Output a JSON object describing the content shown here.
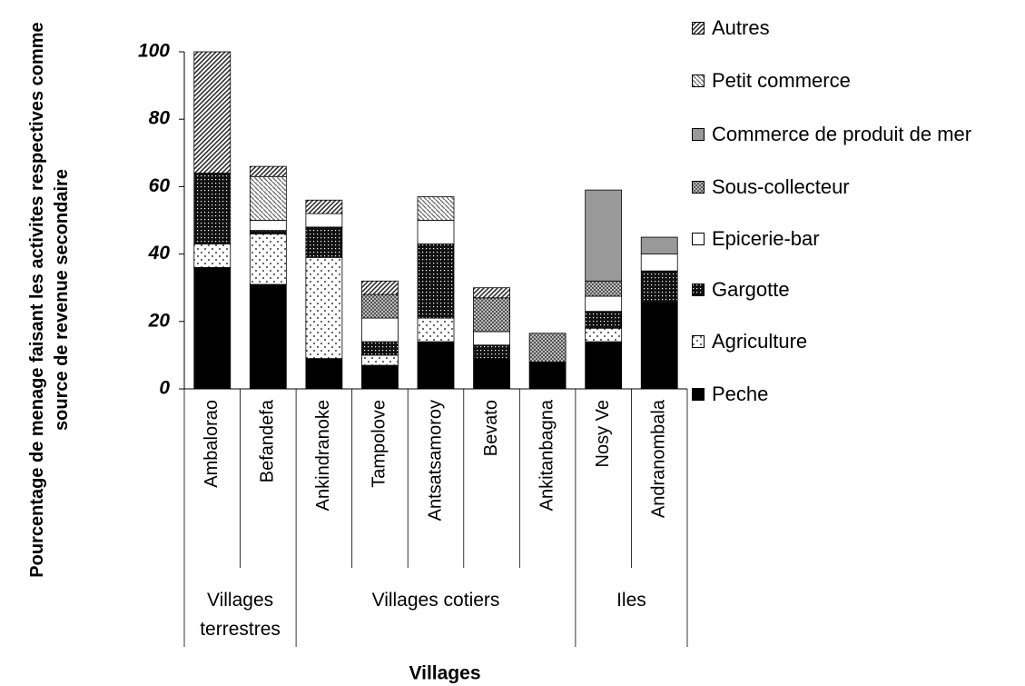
{
  "chart_data": {
    "type": "stacked_bar",
    "ylabel": "Pourcentage de menage faisant les activites respectives comme source de revenue secondaire",
    "xlabel": "Villages",
    "categories": [
      "Ambalorao",
      "Befandefa",
      "Ankindranoke",
      "Tampolove",
      "Antsatsamoroy",
      "Bevato",
      "Ankitanbagna",
      "Nosy Ve",
      "Andranombala"
    ],
    "groups": [
      {
        "label": "Villages terrestres",
        "span": 2
      },
      {
        "label": "Villages cotiers",
        "span": 5
      },
      {
        "label": "Iles",
        "span": 2
      }
    ],
    "series": [
      {
        "name": "Peche",
        "color": "#000000",
        "pattern": "solid",
        "values": [
          36,
          31,
          9,
          7,
          14,
          9,
          8,
          14,
          25.5
        ]
      },
      {
        "name": "Agriculture",
        "color": "#ffffff",
        "pattern": "dots",
        "values": [
          7,
          15,
          30,
          3,
          7,
          0,
          0,
          4,
          0
        ]
      },
      {
        "name": "Gargotte",
        "color": "#222222",
        "pattern": "dense",
        "values": [
          21,
          1,
          9,
          4,
          22,
          4,
          0,
          5,
          9.5
        ]
      },
      {
        "name": "Epicerie-bar",
        "color": "#ffffff",
        "pattern": "solid",
        "values": [
          0,
          3,
          4,
          7,
          7,
          4,
          0,
          4.5,
          5
        ]
      },
      {
        "name": "Sous-collecteur",
        "color": "#888888",
        "pattern": "checker",
        "values": [
          0,
          0,
          0,
          7,
          0,
          10,
          8.5,
          4.5,
          0
        ]
      },
      {
        "name": "Commerce de produit de mer",
        "color": "#999999",
        "pattern": "solid",
        "values": [
          0,
          0,
          0,
          0,
          0,
          0,
          0,
          27,
          5
        ]
      },
      {
        "name": "Petit commerce",
        "color": "#ffffff",
        "pattern": "back",
        "values": [
          0,
          13,
          0,
          0,
          7,
          0,
          0,
          0,
          0
        ]
      },
      {
        "name": "Autres",
        "color": "#ffffff",
        "pattern": "fwd",
        "values": [
          36,
          3,
          4,
          4,
          0,
          3,
          0,
          0,
          0
        ]
      }
    ],
    "ylim": [
      0,
      100
    ],
    "yticks": [
      0,
      20,
      40,
      60,
      80,
      100
    ],
    "legend": "right"
  }
}
